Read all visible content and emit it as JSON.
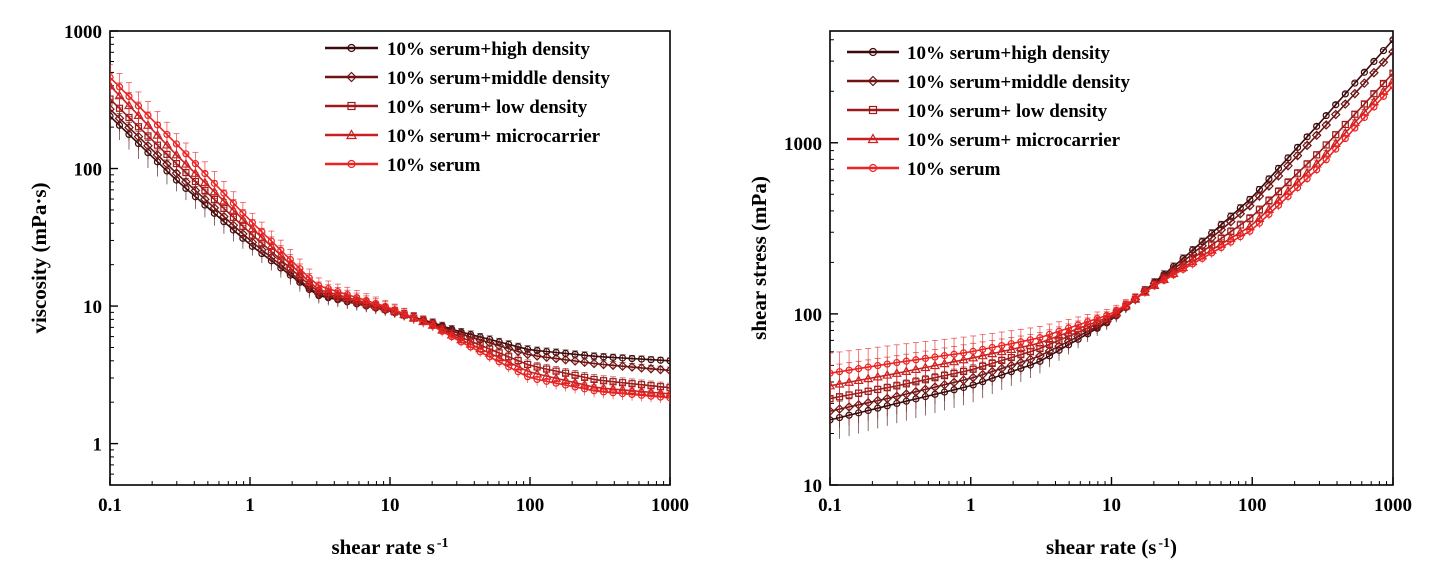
{
  "chart_data": [
    {
      "type": "line",
      "xlabel": "shear rate s",
      "xlabel_sup": "-1",
      "ylabel": "viscosity (mPa·s)",
      "x_scale": "log",
      "y_scale": "log",
      "xlim": [
        0.1,
        1000
      ],
      "ylim": [
        0.5,
        1000
      ],
      "x_ticks": [
        {
          "v": 0.1,
          "label": "0.1"
        },
        {
          "v": 1,
          "label": "1"
        },
        {
          "v": 10,
          "label": "10"
        },
        {
          "v": 100,
          "label": "100"
        },
        {
          "v": 1000,
          "label": "1000"
        }
      ],
      "y_ticks": [
        {
          "v": 1,
          "label": "1"
        },
        {
          "v": 10,
          "label": "10"
        },
        {
          "v": 100,
          "label": "100"
        },
        {
          "v": 1000,
          "label": "1000"
        }
      ],
      "legend_position": "top-right",
      "x": [
        0.1,
        0.3,
        1,
        3,
        10,
        20,
        30,
        100,
        300,
        1000
      ],
      "series": [
        {
          "name": "10% serum+high density",
          "marker": "circle",
          "color": "#3d0a0a",
          "values": [
            240,
            82,
            28,
            12,
            9.2,
            7.6,
            6.6,
            4.8,
            4.3,
            4.0
          ],
          "err": [
            50,
            14,
            4,
            1.5,
            0.8,
            0.5,
            0.4,
            0.3,
            0.25,
            0.2
          ]
        },
        {
          "name": "10% serum+middle density",
          "marker": "diamond",
          "color": "#6e1414",
          "values": [
            270,
            92,
            30,
            12.3,
            9.2,
            7.5,
            6.4,
            4.4,
            3.8,
            3.4
          ],
          "err": [
            50,
            14,
            4,
            1.5,
            0.8,
            0.5,
            0.4,
            0.3,
            0.25,
            0.2
          ]
        },
        {
          "name": "10% serum+ low density",
          "marker": "square",
          "color": "#9c1a1a",
          "values": [
            320,
            108,
            34,
            12.8,
            9.3,
            7.4,
            6.1,
            3.7,
            2.9,
            2.55
          ],
          "err": [
            60,
            16,
            4,
            1.5,
            0.8,
            0.5,
            0.4,
            0.3,
            0.25,
            0.2
          ]
        },
        {
          "name": "10% serum+ microcarrier",
          "marker": "triangle",
          "color": "#c82020",
          "values": [
            400,
            125,
            38,
            13.3,
            9.5,
            7.3,
            5.9,
            3.3,
            2.55,
            2.3
          ],
          "err": [
            90,
            22,
            6,
            1.8,
            1.0,
            0.6,
            0.4,
            0.3,
            0.25,
            0.2
          ]
        },
        {
          "name": "10% serum",
          "marker": "circle",
          "color": "#ec2323",
          "values": [
            460,
            150,
            42,
            14.2,
            9.7,
            7.2,
            5.7,
            3.0,
            2.4,
            2.15
          ],
          "err": [
            110,
            28,
            7,
            2.0,
            1.0,
            0.6,
            0.4,
            0.3,
            0.25,
            0.2
          ]
        }
      ]
    },
    {
      "type": "line",
      "xlabel": "shear rate (s",
      "xlabel_sup": "-1",
      "xlabel_suffix": ")",
      "ylabel": "shear stress (mPa)",
      "x_scale": "log",
      "y_scale": "log",
      "xlim": [
        0.1,
        1000
      ],
      "ylim": [
        10,
        4500
      ],
      "x_ticks": [
        {
          "v": 0.1,
          "label": "0.1"
        },
        {
          "v": 1,
          "label": "1"
        },
        {
          "v": 10,
          "label": "10"
        },
        {
          "v": 100,
          "label": "100"
        },
        {
          "v": 1000,
          "label": "1000"
        }
      ],
      "y_ticks": [
        {
          "v": 10,
          "label": "10"
        },
        {
          "v": 100,
          "label": "100"
        },
        {
          "v": 1000,
          "label": "1000"
        }
      ],
      "legend_position": "top-left",
      "x": [
        0.1,
        0.3,
        1,
        3,
        10,
        20,
        30,
        100,
        300,
        1000
      ],
      "series": [
        {
          "name": "10% serum+high density",
          "marker": "circle",
          "color": "#3d0a0a",
          "values": [
            24,
            30,
            38,
            52,
            92,
            152,
            200,
            480,
            1300,
            4000
          ],
          "err": [
            6,
            7,
            8,
            8,
            8,
            8,
            10,
            20,
            40,
            60
          ]
        },
        {
          "name": "10% serum+middle density",
          "marker": "diamond",
          "color": "#6e1414",
          "values": [
            27,
            33,
            42,
            56,
            93,
            150,
            192,
            440,
            1150,
            3400
          ],
          "err": [
            6,
            7,
            8,
            8,
            8,
            8,
            10,
            20,
            40,
            60
          ]
        },
        {
          "name": "10% serum+ low density",
          "marker": "square",
          "color": "#9c1a1a",
          "values": [
            32,
            38,
            47,
            62,
            95,
            148,
            185,
            370,
            880,
            2550
          ],
          "err": [
            6,
            7,
            8,
            8,
            8,
            8,
            10,
            20,
            40,
            60
          ]
        },
        {
          "name": "10% serum+ microcarrier",
          "marker": "triangle",
          "color": "#c82020",
          "values": [
            38,
            45,
            55,
            67,
            97,
            146,
            180,
            330,
            780,
            2300
          ],
          "err": [
            12,
            12,
            12,
            10,
            8,
            8,
            10,
            20,
            40,
            60
          ]
        },
        {
          "name": "10% serum",
          "marker": "circle",
          "color": "#ec2323",
          "values": [
            45,
            52,
            60,
            72,
            100,
            145,
            176,
            310,
            720,
            2150
          ],
          "err": [
            14,
            14,
            14,
            12,
            8,
            8,
            10,
            20,
            40,
            60
          ]
        }
      ]
    }
  ]
}
